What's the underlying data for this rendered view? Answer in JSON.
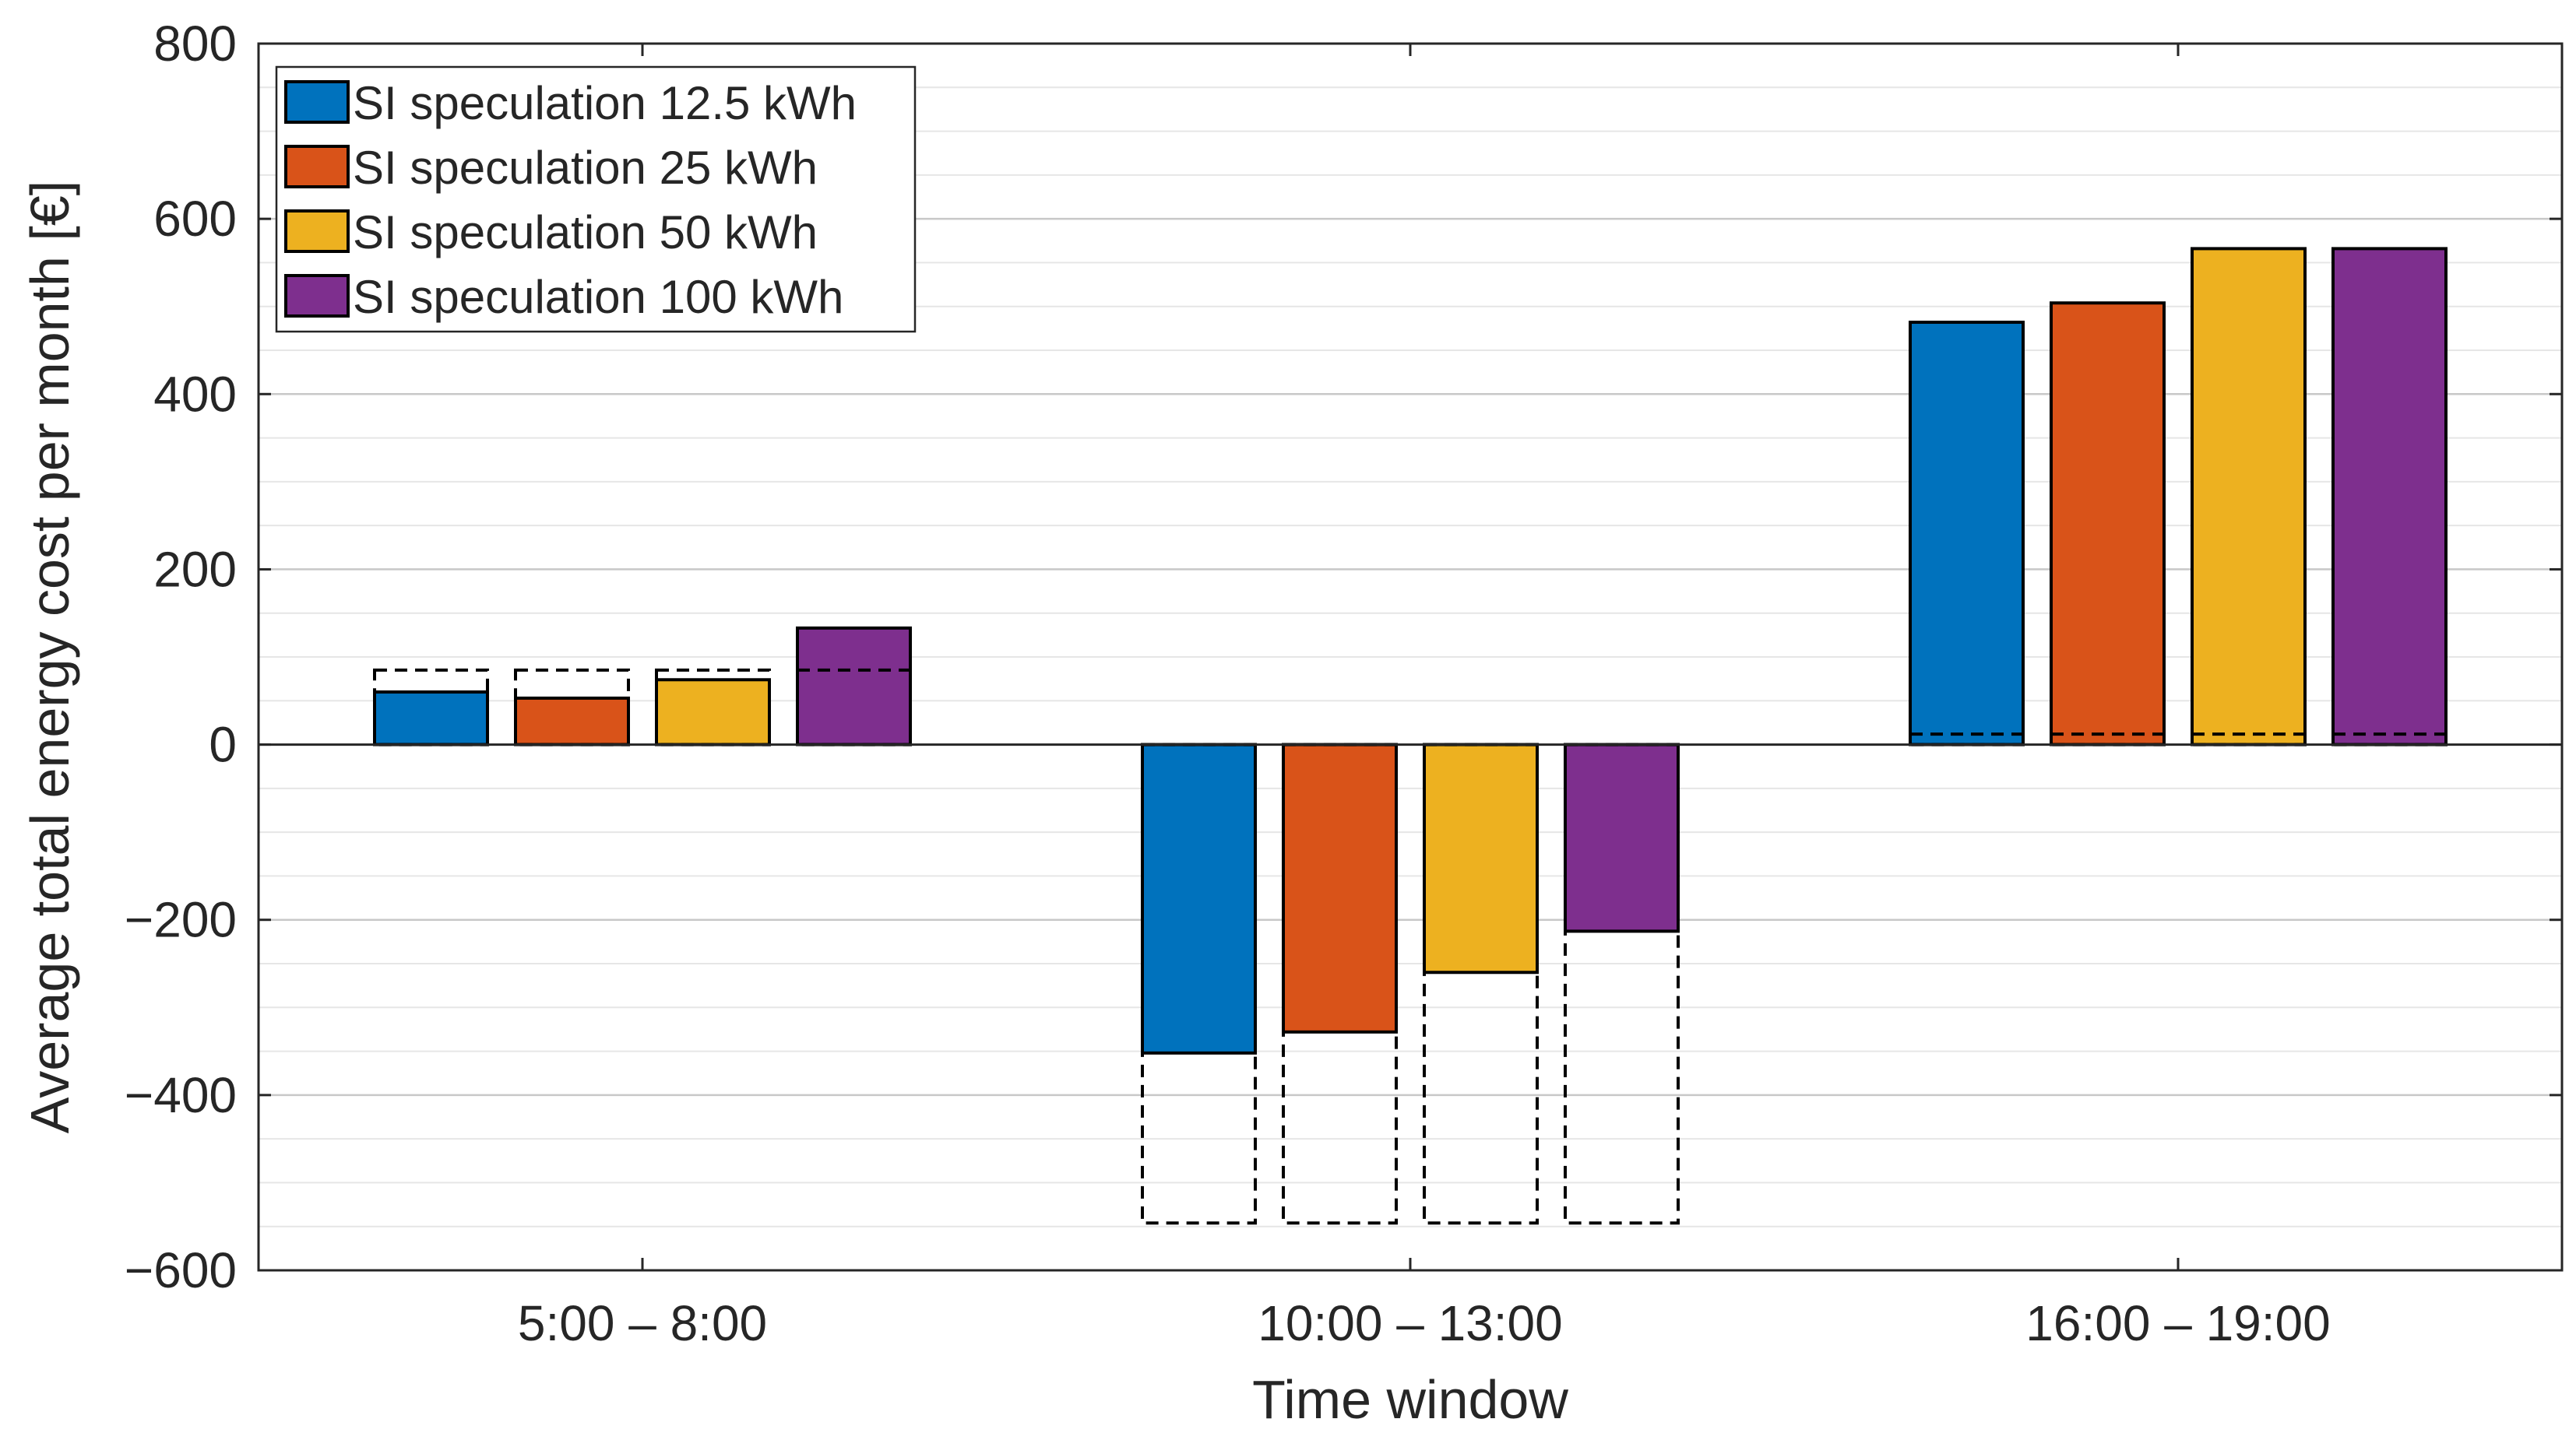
{
  "chart_data": {
    "type": "bar",
    "title": "",
    "xlabel": "Time window",
    "ylabel": "Average total energy cost per month [€]",
    "categories": [
      "5:00 – 8:00",
      "10:00 – 13:00",
      "16:00 – 19:00"
    ],
    "ylim": [
      -600,
      800
    ],
    "yticks": [
      -600,
      -400,
      -200,
      0,
      200,
      400,
      600,
      800
    ],
    "ytick_labels": [
      "−600",
      "−400",
      "−200",
      "0",
      "200",
      "400",
      "600",
      "800"
    ],
    "grid": "horizontal major and minor",
    "legend_position": "top-left",
    "series": [
      {
        "name": "SI speculation 12.5 kWh",
        "color": "#0072BD",
        "values": [
          60,
          -352,
          482
        ]
      },
      {
        "name": "SI speculation 25 kWh",
        "color": "#D95319",
        "values": [
          53,
          -328,
          504
        ]
      },
      {
        "name": "SI speculation 50 kWh",
        "color": "#EDB120",
        "values": [
          74,
          -260,
          566
        ]
      },
      {
        "name": "SI speculation 100 kWh",
        "color": "#7E2F8E",
        "values": [
          133,
          -213,
          566
        ]
      }
    ],
    "reference_dashed": {
      "description": "dashed outlined bars (reference without speculation)",
      "values_per_category": [
        85,
        -546,
        12
      ]
    }
  }
}
